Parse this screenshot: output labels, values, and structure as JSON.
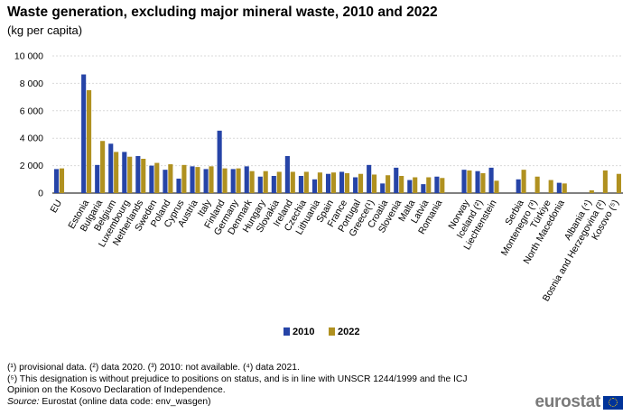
{
  "header": {
    "title": "Waste generation, excluding major mineral waste, 2010 and 2022",
    "subtitle": "(kg per capita)"
  },
  "chart_data": {
    "type": "bar",
    "title": "Waste generation, excluding major mineral waste, 2010 and 2022",
    "subtitle": "(kg per capita)",
    "xlabel": "",
    "ylabel": "",
    "ylim": [
      0,
      10000
    ],
    "y_ticks": [
      0,
      2000,
      4000,
      6000,
      8000,
      10000
    ],
    "y_tick_labels": [
      "0",
      "2 000",
      "4 000",
      "6 000",
      "8 000",
      "10 000"
    ],
    "grid": true,
    "legend_position": "bottom-center",
    "groups": [
      [
        "EU"
      ],
      [
        "Estonia",
        "Bulgaria",
        "Belgium",
        "Luxembourg",
        "Netherlands",
        "Sweden",
        "Poland",
        "Cyprus",
        "Austria",
        "Italy",
        "Finland",
        "Germany",
        "Denmark",
        "Hungary",
        "Slovakia",
        "Ireland",
        "Czechia",
        "Lithuania",
        "Spain",
        "France",
        "Portugal",
        "Greece(¹)",
        "Croatia",
        "Slovenia",
        "Malta",
        "Latvia",
        "Romania"
      ],
      [
        "Norway",
        "Iceland (²)",
        "Liechtenstein"
      ],
      [
        "Serbia",
        "Montenegro (³)",
        "Türkiye",
        "North Macedonia"
      ],
      [
        "Albania (⁴)",
        "Bosnia and Herzegovina (²)",
        "Kosovo (⁵)"
      ]
    ],
    "categories": [
      "EU",
      "Estonia",
      "Bulgaria",
      "Belgium",
      "Luxembourg",
      "Netherlands",
      "Sweden",
      "Poland",
      "Cyprus",
      "Austria",
      "Italy",
      "Finland",
      "Germany",
      "Denmark",
      "Hungary",
      "Slovakia",
      "Ireland",
      "Czechia",
      "Lithuania",
      "Spain",
      "France",
      "Portugal",
      "Greece(¹)",
      "Croatia",
      "Slovenia",
      "Malta",
      "Latvia",
      "Romania",
      "Norway",
      "Iceland (²)",
      "Liechtenstein",
      "Serbia",
      "Montenegro (³)",
      "Türkiye",
      "North Macedonia",
      "Albania (⁴)",
      "Bosnia and Herzegovina (²)",
      "Kosovo (⁵)"
    ],
    "series": [
      {
        "name": "2010",
        "color": "#2644a7",
        "values": [
          1750,
          8650,
          2050,
          3600,
          3000,
          2700,
          2000,
          1700,
          1050,
          1950,
          1750,
          4550,
          1750,
          1950,
          1200,
          1250,
          2700,
          1250,
          1000,
          1400,
          1550,
          1150,
          2050,
          700,
          1850,
          950,
          650,
          1200,
          1700,
          1600,
          1850,
          1000,
          null,
          0,
          750,
          null,
          null,
          null
        ]
      },
      {
        "name": "2022",
        "color": "#b09120",
        "values": [
          1800,
          7500,
          3800,
          3000,
          2650,
          2500,
          2200,
          2100,
          2050,
          1900,
          1950,
          1800,
          1800,
          1600,
          1600,
          1550,
          1550,
          1550,
          1500,
          1500,
          1450,
          1400,
          1350,
          1300,
          1250,
          1150,
          1150,
          1100,
          1650,
          1450,
          900,
          1700,
          1200,
          950,
          700,
          200,
          1650,
          1400
        ]
      }
    ]
  },
  "footnotes": [
    "(¹) provisional data. (²) data 2020. (³) 2010: not available. (⁴) data 2021.",
    "(⁵) This designation is without prejudice to positions on status, and is in line with UNSCR 1244/1999 and the ICJ",
    "Opinion on the Kosovo Declaration of Independence."
  ],
  "source": {
    "label": "Source:",
    "text": "Eurostat (online data code: env_wasgen)"
  },
  "logo": {
    "text": "eurostat",
    "flag_color": "#003399"
  }
}
